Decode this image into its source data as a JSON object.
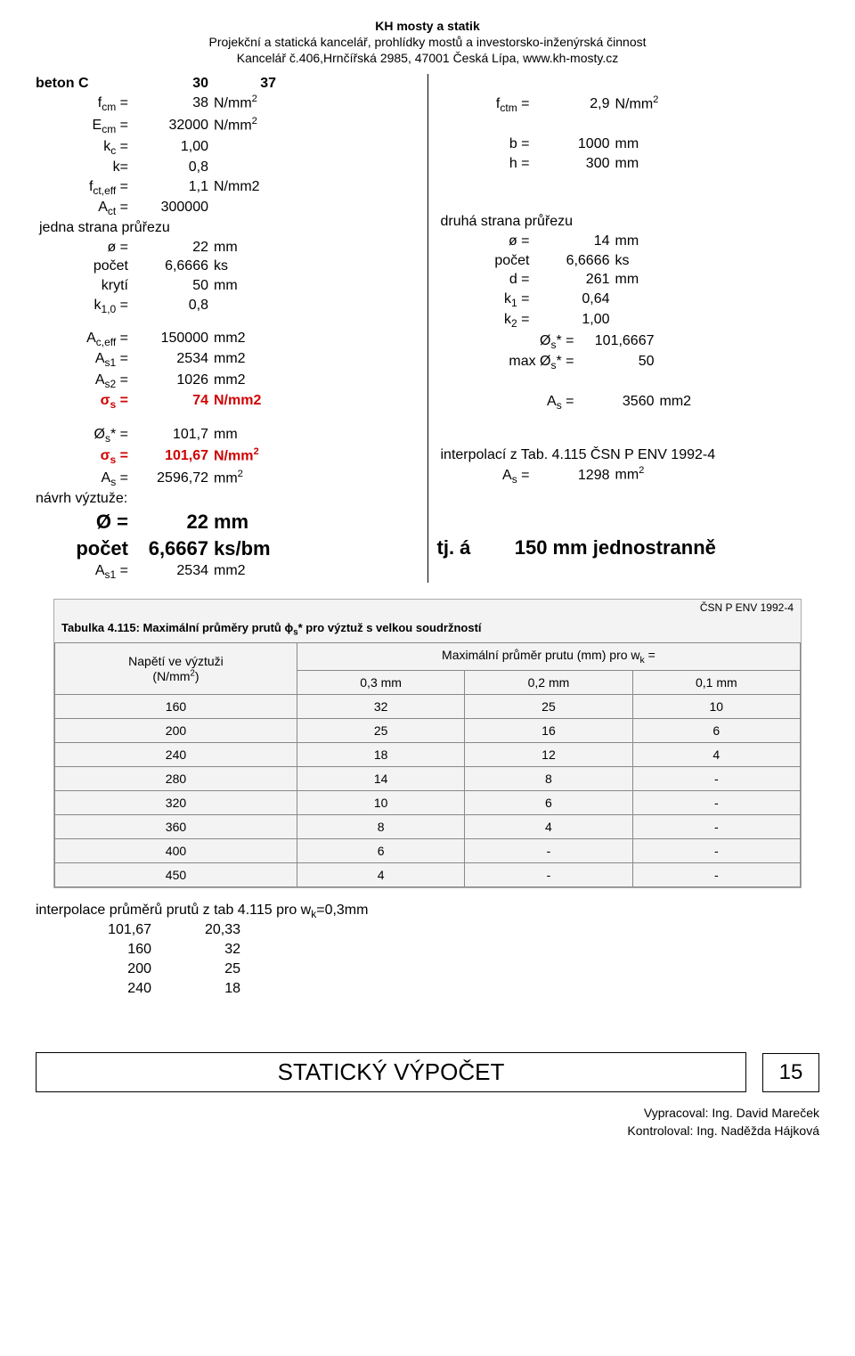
{
  "header": {
    "line1": "KH mosty a statik",
    "line2": "Projekční a statická kancelář, prohlídky mostů a investorsko-inženýrská činnost",
    "line3": "Kancelář č.406,Hrnčířská 2985, 47001 Česká Lípa, www.kh-mosty.cz"
  },
  "beton": {
    "label": "beton C",
    "a": "30",
    "b": "37"
  },
  "left": {
    "fcm": {
      "lab": "f_cm =",
      "v": "38",
      "u": "N/mm²"
    },
    "Ecm": {
      "lab": "E_cm =",
      "v": "32000",
      "u": "N/mm²"
    },
    "kc": {
      "lab": "k_c =",
      "v": "1,00"
    },
    "k": {
      "lab": "k=",
      "v": "0,8"
    },
    "fcteff": {
      "lab": "f_ct,eff =",
      "v": "1,1",
      "u": "N/mm2"
    },
    "Act": {
      "lab": "A_ct =",
      "v": "300000"
    },
    "jedna": "jedna strana průřezu",
    "phi": {
      "lab": "ø =",
      "v": "22",
      "u": "mm"
    },
    "pocet": {
      "lab": "počet",
      "v": "6,6666",
      "u": "ks"
    },
    "kryti": {
      "lab": "krytí",
      "v": "50",
      "u": "mm"
    },
    "k10": {
      "lab": "k_1,0 =",
      "v": "0,8"
    },
    "Aceff": {
      "lab": "A_c,eff =",
      "v": "150000",
      "u": "mm2"
    },
    "As1": {
      "lab": "A_s1 =",
      "v": "2534",
      "u": "mm2"
    },
    "As2": {
      "lab": "A_s2 =",
      "v": "1026",
      "u": "mm2"
    },
    "sigma": {
      "lab": "σ_s =",
      "v": "74",
      "u": "N/mm2"
    },
    "Phis": {
      "lab": "Ø_s* =",
      "v": "101,7",
      "u": "mm"
    },
    "sigmas": {
      "lab": "σ_s =",
      "v": "101,67",
      "u": "N/mm²"
    },
    "As": {
      "lab": "A_s =",
      "v": "2596,72",
      "u": "mm²"
    },
    "navrh": "návrh výztuže:",
    "Oeq": {
      "lab": "Ø =",
      "v": "22",
      "u": "mm"
    },
    "pocet2": {
      "lab": "počet",
      "v": "6,6667",
      "u": "ks/bm"
    },
    "As1b": {
      "lab": "A_s1 =",
      "v": "2534",
      "u": "mm2"
    }
  },
  "right": {
    "fctm": {
      "lab": "f_ctm =",
      "v": "2,9",
      "u": "N/mm²"
    },
    "b": {
      "lab": "b =",
      "v": "1000",
      "u": "mm"
    },
    "h": {
      "lab": "h =",
      "v": "300",
      "u": "mm"
    },
    "druha": "druhá strana průřezu",
    "phi": {
      "lab": "ø =",
      "v": "14",
      "u": "mm"
    },
    "pocet": {
      "lab": "počet",
      "v": "6,6666",
      "u": "ks"
    },
    "d": {
      "lab": "d =",
      "v": "261",
      "u": "mm"
    },
    "k1": {
      "lab": "k_1 =",
      "v": "0,64"
    },
    "k2": {
      "lab": "k_2 =",
      "v": "1,00"
    },
    "Os": {
      "lab": "Ø_s* =",
      "v": "101,6667"
    },
    "maxOs": {
      "lab": "max Ø_s* =",
      "v": "50"
    },
    "Aseq": {
      "lab": "A_s =",
      "v": "3560",
      "u": "mm2"
    },
    "interp": "interpolací z Tab. 4.115 ČSN P ENV 1992-4",
    "As": {
      "lab": "A_s =",
      "v": "1298",
      "u": "mm²"
    },
    "tja": {
      "lab": "tj. á",
      "v": "150",
      "u": "mm jednostranně"
    }
  },
  "table115": {
    "csn": "ČSN P ENV 1992-4",
    "caption": "Tabulka 4.115: Maximální průměry prutů ϕ_s* pro výztuž s velkou soudržností",
    "head1": "Napětí ve výztuži",
    "head1unit": "(N/mm²)",
    "head2": "Maximální průměr prutu (mm) pro w_k =",
    "cols": [
      "0,3 mm",
      "0,2 mm",
      "0,1 mm"
    ],
    "rows": [
      [
        "160",
        "32",
        "25",
        "10"
      ],
      [
        "200",
        "25",
        "16",
        "6"
      ],
      [
        "240",
        "18",
        "12",
        "4"
      ],
      [
        "280",
        "14",
        "8",
        "-"
      ],
      [
        "320",
        "10",
        "6",
        "-"
      ],
      [
        "360",
        "8",
        "4",
        "-"
      ],
      [
        "400",
        "6",
        "-",
        "-"
      ],
      [
        "450",
        "4",
        "-",
        "-"
      ]
    ]
  },
  "interp": {
    "title": "interpolace průměrů prutů z tab 4.115 pro w_k=0,3mm",
    "rows": [
      [
        "101,67",
        "20,33"
      ],
      [
        "160",
        "32"
      ],
      [
        "200",
        "25"
      ],
      [
        "240",
        "18"
      ]
    ]
  },
  "footer": {
    "title": "STATICKÝ VÝPOČET",
    "page": "15",
    "vyprac": "Vypracoval: Ing. David Mareček",
    "kontr": "Kontroloval: Ing. Naděžda Hájková"
  }
}
